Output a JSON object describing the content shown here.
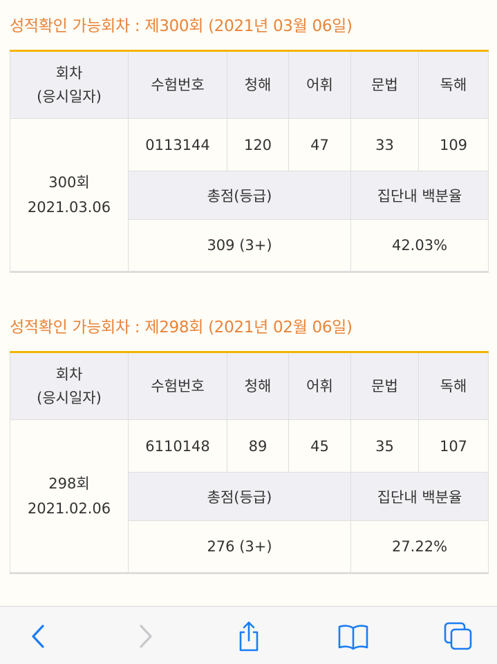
{
  "sections": [
    {
      "title": "성적확인 가능회차 : 제300회 (2021년 03월 06일)",
      "headers": {
        "session": [
          "회차",
          "(응시일자)"
        ],
        "exam_no": "수험번호",
        "listening": "청해",
        "vocab": "어휘",
        "grammar": "문법",
        "reading": "독해"
      },
      "row": {
        "session": "300회",
        "date": "2021.03.06",
        "exam_no": "0113144",
        "listening": "120",
        "vocab": "47",
        "grammar": "33",
        "reading": "109"
      },
      "total_label": "총점(등급)",
      "percentile_label": "집단내 백분율",
      "total": "309 (3+)",
      "percentile": "42.03%"
    },
    {
      "title": "성적확인 가능회차 : 제298회 (2021년 02월 06일)",
      "headers": {
        "session": [
          "회차",
          "(응시일자)"
        ],
        "exam_no": "수험번호",
        "listening": "청해",
        "vocab": "어휘",
        "grammar": "문법",
        "reading": "독해"
      },
      "row": {
        "session": "298회",
        "date": "2021.02.06",
        "exam_no": "6110148",
        "listening": "89",
        "vocab": "45",
        "grammar": "35",
        "reading": "107"
      },
      "total_label": "총점(등급)",
      "percentile_label": "집단내 백분율",
      "total": "276 (3+)",
      "percentile": "27.22%"
    }
  ],
  "toolbar": {
    "back_icon": "chevron-left-icon",
    "forward_icon": "chevron-right-icon",
    "share_icon": "share-icon",
    "bookmarks_icon": "book-icon",
    "tabs_icon": "tabs-icon",
    "accent": "#1a7cf4",
    "disabled": "#c7c7cc"
  }
}
